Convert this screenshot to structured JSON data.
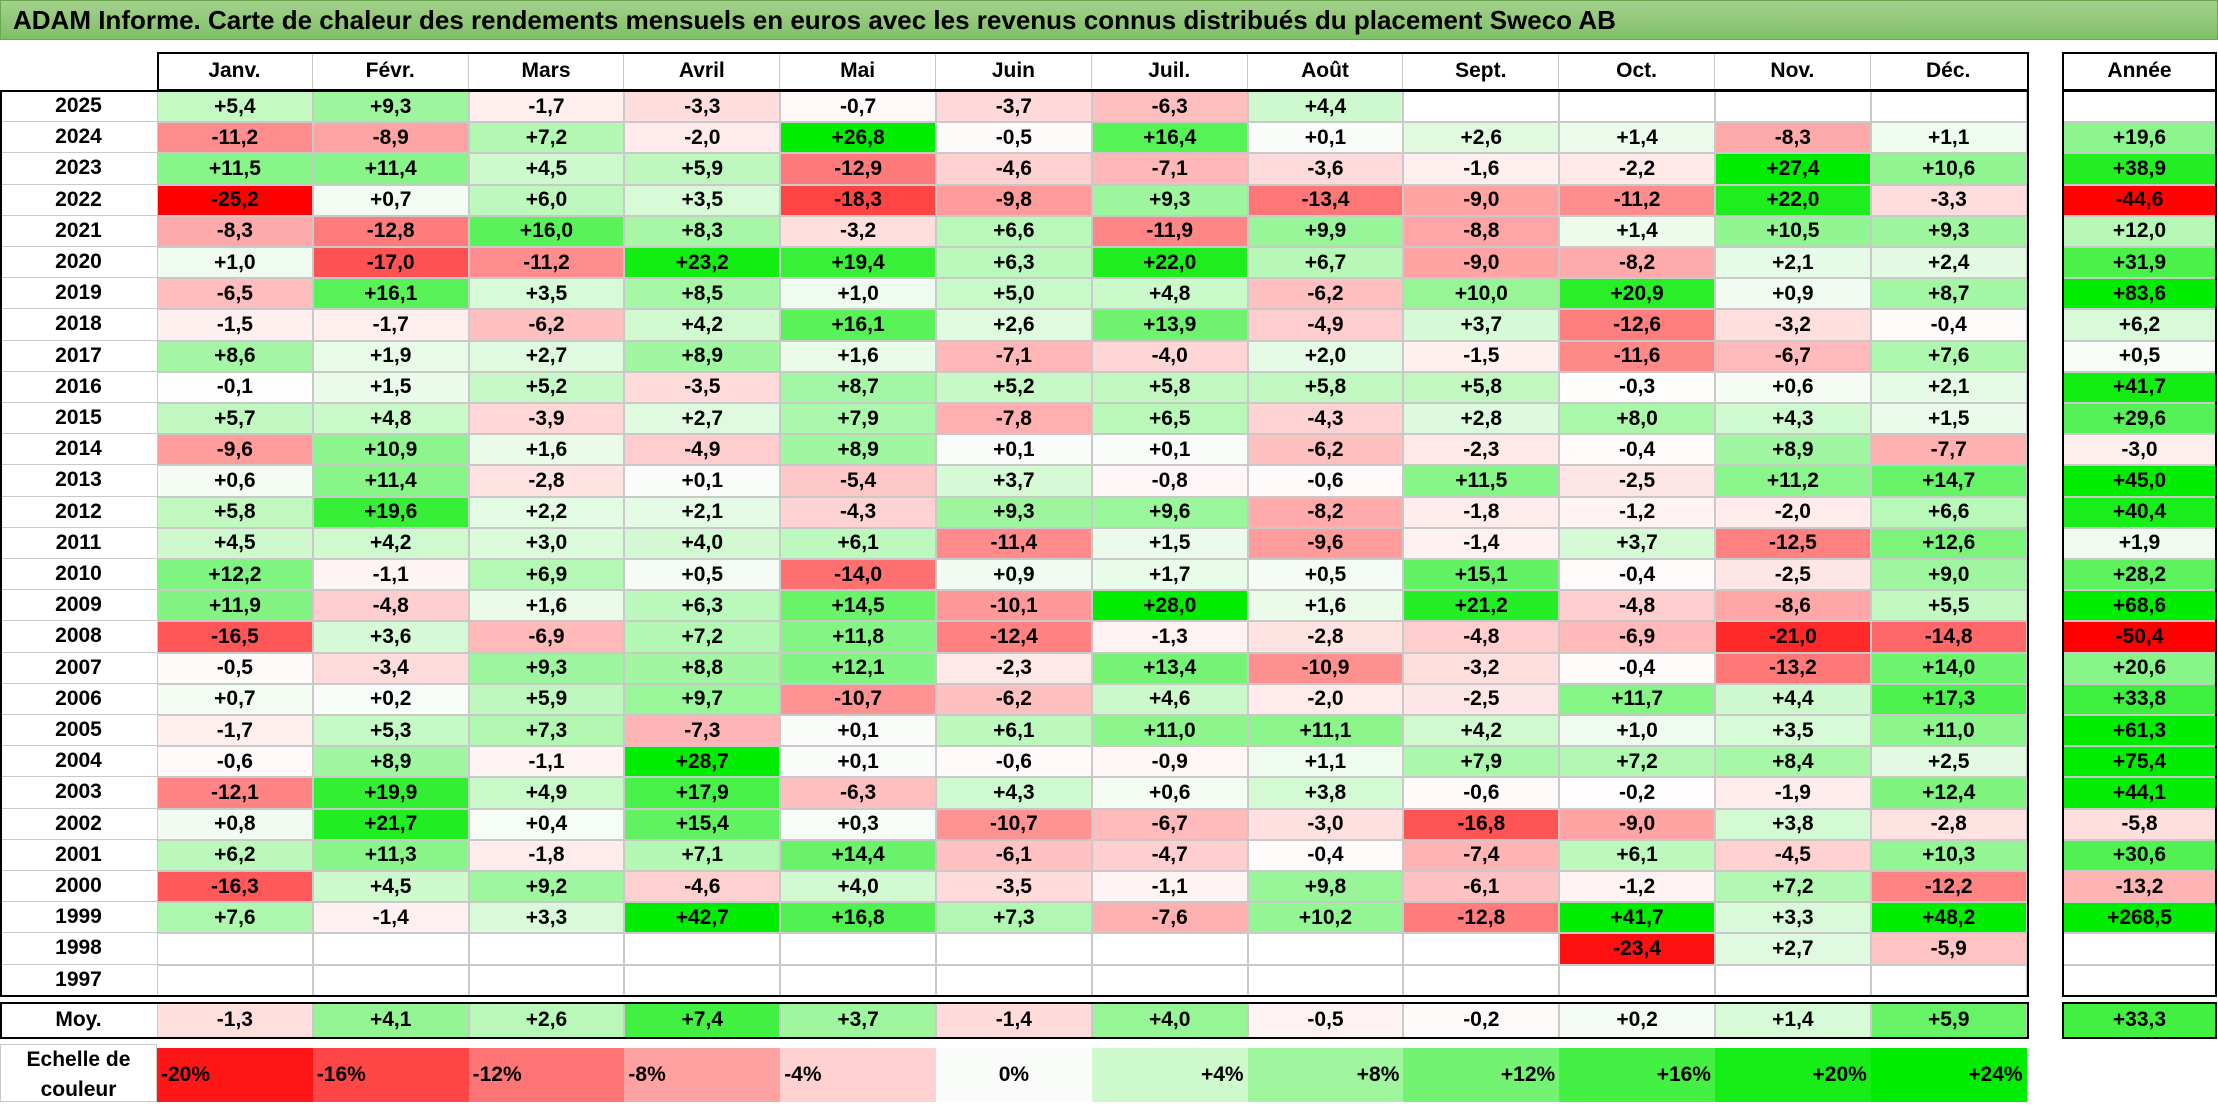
{
  "title": "ADAM Informe. Carte de chaleur des rendements mensuels en euros avec les revenus connus distribués du placement Sweco AB",
  "chart_data": {
    "type": "heatmap",
    "columns": [
      "Janv.",
      "Févr.",
      "Mars",
      "Avril",
      "Mai",
      "Juin",
      "Juil.",
      "Août",
      "Sept.",
      "Oct.",
      "Nov.",
      "Déc."
    ],
    "annual_header": "Année",
    "rows": [
      {
        "year": "2025",
        "values": [
          "+5,4",
          "+9,3",
          "-1,7",
          "-3,3",
          "-0,7",
          "-3,7",
          "-6,3",
          "+4,4",
          "",
          "",
          "",
          ""
        ],
        "annual": ""
      },
      {
        "year": "2024",
        "values": [
          "-11,2",
          "-8,9",
          "+7,2",
          "-2,0",
          "+26,8",
          "-0,5",
          "+16,4",
          "+0,1",
          "+2,6",
          "+1,4",
          "-8,3",
          "+1,1"
        ],
        "annual": "+19,6"
      },
      {
        "year": "2023",
        "values": [
          "+11,5",
          "+11,4",
          "+4,5",
          "+5,9",
          "-12,9",
          "-4,6",
          "-7,1",
          "-3,6",
          "-1,6",
          "-2,2",
          "+27,4",
          "+10,6"
        ],
        "annual": "+38,9"
      },
      {
        "year": "2022",
        "values": [
          "-25,2",
          "+0,7",
          "+6,0",
          "+3,5",
          "-18,3",
          "-9,8",
          "+9,3",
          "-13,4",
          "-9,0",
          "-11,2",
          "+22,0",
          "-3,3"
        ],
        "annual": "-44,6"
      },
      {
        "year": "2021",
        "values": [
          "-8,3",
          "-12,8",
          "+16,0",
          "+8,3",
          "-3,2",
          "+6,6",
          "-11,9",
          "+9,9",
          "-8,8",
          "+1,4",
          "+10,5",
          "+9,3"
        ],
        "annual": "+12,0"
      },
      {
        "year": "2020",
        "values": [
          "+1,0",
          "-17,0",
          "-11,2",
          "+23,2",
          "+19,4",
          "+6,3",
          "+22,0",
          "+6,7",
          "-9,0",
          "-8,2",
          "+2,1",
          "+2,4"
        ],
        "annual": "+31,9"
      },
      {
        "year": "2019",
        "values": [
          "-6,5",
          "+16,1",
          "+3,5",
          "+8,5",
          "+1,0",
          "+5,0",
          "+4,8",
          "-6,2",
          "+10,0",
          "+20,9",
          "+0,9",
          "+8,7"
        ],
        "annual": "+83,6"
      },
      {
        "year": "2018",
        "values": [
          "-1,5",
          "-1,7",
          "-6,2",
          "+4,2",
          "+16,1",
          "+2,6",
          "+13,9",
          "-4,9",
          "+3,7",
          "-12,6",
          "-3,2",
          "-0,4"
        ],
        "annual": "+6,2"
      },
      {
        "year": "2017",
        "values": [
          "+8,6",
          "+1,9",
          "+2,7",
          "+8,9",
          "+1,6",
          "-7,1",
          "-4,0",
          "+2,0",
          "-1,5",
          "-11,6",
          "-6,7",
          "+7,6"
        ],
        "annual": "+0,5"
      },
      {
        "year": "2016",
        "values": [
          "-0,1",
          "+1,5",
          "+5,2",
          "-3,5",
          "+8,7",
          "+5,2",
          "+5,8",
          "+5,8",
          "+5,8",
          "-0,3",
          "+0,6",
          "+2,1"
        ],
        "annual": "+41,7"
      },
      {
        "year": "2015",
        "values": [
          "+5,7",
          "+4,8",
          "-3,9",
          "+2,7",
          "+7,9",
          "-7,8",
          "+6,5",
          "-4,3",
          "+2,8",
          "+8,0",
          "+4,3",
          "+1,5"
        ],
        "annual": "+29,6"
      },
      {
        "year": "2014",
        "values": [
          "-9,6",
          "+10,9",
          "+1,6",
          "-4,9",
          "+8,9",
          "+0,1",
          "+0,1",
          "-6,2",
          "-2,3",
          "-0,4",
          "+8,9",
          "-7,7"
        ],
        "annual": "-3,0"
      },
      {
        "year": "2013",
        "values": [
          "+0,6",
          "+11,4",
          "-2,8",
          "+0,1",
          "-5,4",
          "+3,7",
          "-0,8",
          "-0,6",
          "+11,5",
          "-2,5",
          "+11,2",
          "+14,7"
        ],
        "annual": "+45,0"
      },
      {
        "year": "2012",
        "values": [
          "+5,8",
          "+19,6",
          "+2,2",
          "+2,1",
          "-4,3",
          "+9,3",
          "+9,6",
          "-8,2",
          "-1,8",
          "-1,2",
          "-2,0",
          "+6,6"
        ],
        "annual": "+40,4"
      },
      {
        "year": "2011",
        "values": [
          "+4,5",
          "+4,2",
          "+3,0",
          "+4,0",
          "+6,1",
          "-11,4",
          "+1,5",
          "-9,6",
          "-1,4",
          "+3,7",
          "-12,5",
          "+12,6"
        ],
        "annual": "+1,9"
      },
      {
        "year": "2010",
        "values": [
          "+12,2",
          "-1,1",
          "+6,9",
          "+0,5",
          "-14,0",
          "+0,9",
          "+1,7",
          "+0,5",
          "+15,1",
          "-0,4",
          "-2,5",
          "+9,0"
        ],
        "annual": "+28,2"
      },
      {
        "year": "2009",
        "values": [
          "+11,9",
          "-4,8",
          "+1,6",
          "+6,3",
          "+14,5",
          "-10,1",
          "+28,0",
          "+1,6",
          "+21,2",
          "-4,8",
          "-8,6",
          "+5,5"
        ],
        "annual": "+68,6"
      },
      {
        "year": "2008",
        "values": [
          "-16,5",
          "+3,6",
          "-6,9",
          "+7,2",
          "+11,8",
          "-12,4",
          "-1,3",
          "-2,8",
          "-4,8",
          "-6,9",
          "-21,0",
          "-14,8"
        ],
        "annual": "-50,4"
      },
      {
        "year": "2007",
        "values": [
          "-0,5",
          "-3,4",
          "+9,3",
          "+8,8",
          "+12,1",
          "-2,3",
          "+13,4",
          "-10,9",
          "-3,2",
          "-0,4",
          "-13,2",
          "+14,0"
        ],
        "annual": "+20,6"
      },
      {
        "year": "2006",
        "values": [
          "+0,7",
          "+0,2",
          "+5,9",
          "+9,7",
          "-10,7",
          "-6,2",
          "+4,6",
          "-2,0",
          "-2,5",
          "+11,7",
          "+4,4",
          "+17,3"
        ],
        "annual": "+33,8"
      },
      {
        "year": "2005",
        "values": [
          "-1,7",
          "+5,3",
          "+7,3",
          "-7,3",
          "+0,1",
          "+6,1",
          "+11,0",
          "+11,1",
          "+4,2",
          "+1,0",
          "+3,5",
          "+11,0"
        ],
        "annual": "+61,3"
      },
      {
        "year": "2004",
        "values": [
          "-0,6",
          "+8,9",
          "-1,1",
          "+28,7",
          "+0,1",
          "-0,6",
          "-0,9",
          "+1,1",
          "+7,9",
          "+7,2",
          "+8,4",
          "+2,5"
        ],
        "annual": "+75,4"
      },
      {
        "year": "2003",
        "values": [
          "-12,1",
          "+19,9",
          "+4,9",
          "+17,9",
          "-6,3",
          "+4,3",
          "+0,6",
          "+3,8",
          "-0,6",
          "-0,2",
          "-1,9",
          "+12,4"
        ],
        "annual": "+44,1"
      },
      {
        "year": "2002",
        "values": [
          "+0,8",
          "+21,7",
          "+0,4",
          "+15,4",
          "+0,3",
          "-10,7",
          "-6,7",
          "-3,0",
          "-16,8",
          "-9,0",
          "+3,8",
          "-2,8"
        ],
        "annual": "-5,8"
      },
      {
        "year": "2001",
        "values": [
          "+6,2",
          "+11,3",
          "-1,8",
          "+7,1",
          "+14,4",
          "-6,1",
          "-4,7",
          "-0,4",
          "-7,4",
          "+6,1",
          "-4,5",
          "+10,3"
        ],
        "annual": "+30,6"
      },
      {
        "year": "2000",
        "values": [
          "-16,3",
          "+4,5",
          "+9,2",
          "-4,6",
          "+4,0",
          "-3,5",
          "-1,1",
          "+9,8",
          "-6,1",
          "-1,2",
          "+7,2",
          "-12,2"
        ],
        "annual": "-13,2"
      },
      {
        "year": "1999",
        "values": [
          "+7,6",
          "-1,4",
          "+3,3",
          "+42,7",
          "+16,8",
          "+7,3",
          "-7,6",
          "+10,2",
          "-12,8",
          "+41,7",
          "+3,3",
          "+48,2"
        ],
        "annual": "+268,5"
      },
      {
        "year": "1998",
        "values": [
          "",
          "",
          "",
          "",
          "",
          "",
          "",
          "",
          "",
          "-23,4",
          "+2,7",
          "-5,9"
        ],
        "annual": ""
      },
      {
        "year": "1997",
        "values": [
          "",
          "",
          "",
          "",
          "",
          "",
          "",
          "",
          "",
          "",
          "",
          ""
        ],
        "annual": ""
      }
    ],
    "average": {
      "label": "Moy.",
      "values": [
        "-1,3",
        "+4,1",
        "+2,6",
        "+7,4",
        "+3,7",
        "-1,4",
        "+4,0",
        "-0,5",
        "-0,2",
        "+0,2",
        "+1,4",
        "+5,9"
      ],
      "annual": "+33,3"
    },
    "scale": {
      "label": "Echelle de couleur",
      "steps": [
        "-20%",
        "-16%",
        "-12%",
        "-8%",
        "-4%",
        "0%",
        "+4%",
        "+8%",
        "+12%",
        "+16%",
        "+20%",
        "+24%"
      ]
    },
    "colors": {
      "negative_max": "#ff0000",
      "neutral": "#ffffff",
      "positive_max": "#00ee00",
      "title_bar": "#8cc874"
    }
  }
}
